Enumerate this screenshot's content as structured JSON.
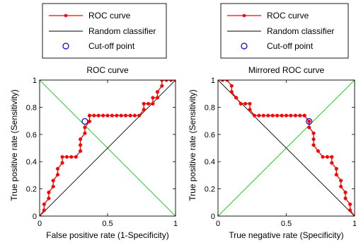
{
  "chart_data": [
    {
      "type": "line",
      "title": "ROC curve",
      "xlabel": "False positive rate (1-Specificity)",
      "ylabel": "True positive rate (Sensitivity)",
      "xlim": [
        0,
        1
      ],
      "ylim": [
        0,
        1
      ],
      "xticks": [
        0,
        0.5,
        1
      ],
      "yticks": [
        0,
        0.2,
        0.4,
        0.6,
        0.8,
        1
      ],
      "xtick_labels": [
        "0",
        "0.5",
        "1"
      ],
      "ytick_labels": [
        "0",
        "0.2",
        "0.4",
        "0.6",
        "0.8",
        "1"
      ],
      "grid": false,
      "legend": {
        "placement": "above-plot",
        "entries": [
          "ROC curve",
          "Random classifier",
          "Cut-off point"
        ]
      },
      "series": [
        {
          "name": "ROC curve",
          "color": "#ff0000",
          "style": "line-with-dots",
          "x": [
            0,
            0.033,
            0.033,
            0.067,
            0.067,
            0.1,
            0.1,
            0.133,
            0.133,
            0.167,
            0.167,
            0.2,
            0.233,
            0.267,
            0.3,
            0.3,
            0.3,
            0.333,
            0.333,
            0.367,
            0.367,
            0.367,
            0.4,
            0.433,
            0.467,
            0.5,
            0.533,
            0.567,
            0.6,
            0.633,
            0.667,
            0.667,
            0.7,
            0.733,
            0.767,
            0.767,
            0.8,
            0.833,
            0.833,
            0.867,
            0.867,
            0.9,
            0.9,
            0.933,
            0.967,
            1,
            1
          ],
          "y": [
            0,
            0.043,
            0.087,
            0.13,
            0.174,
            0.217,
            0.261,
            0.304,
            0.348,
            0.391,
            0.435,
            0.435,
            0.435,
            0.435,
            0.478,
            0.522,
            0.565,
            0.609,
            0.652,
            0.696,
            0.739,
            0.739,
            0.739,
            0.739,
            0.739,
            0.739,
            0.739,
            0.739,
            0.739,
            0.739,
            0.739,
            0.739,
            0.739,
            0.739,
            0.783,
            0.826,
            0.826,
            0.826,
            0.87,
            0.87,
            0.913,
            0.957,
            1,
            1,
            1,
            1,
            1
          ]
        },
        {
          "name": "Random classifier",
          "color": "#000000",
          "style": "line",
          "x": [
            0,
            1
          ],
          "y": [
            0,
            1
          ]
        },
        {
          "name": "",
          "color": "#00cc00",
          "style": "line",
          "x": [
            0,
            1
          ],
          "y": [
            1,
            0
          ]
        }
      ],
      "cutoff_point": {
        "name": "Cut-off point",
        "x": 0.333,
        "y": 0.696,
        "color": "#0000cc"
      }
    },
    {
      "type": "line",
      "title": "Mirrored ROC curve",
      "xlabel": "True negative rate (Specificity)",
      "ylabel": "True positive rate (Sensitivity)",
      "xlim": [
        0,
        1
      ],
      "ylim": [
        0,
        1
      ],
      "xticks": [
        0,
        0.5,
        1
      ],
      "yticks": [
        0,
        0.2,
        0.4,
        0.6,
        0.8,
        1
      ],
      "xtick_labels": [
        "0",
        "0.5",
        "1"
      ],
      "ytick_labels": [
        "0",
        "0.2",
        "0.4",
        "0.6",
        "0.8",
        "1"
      ],
      "grid": false,
      "legend": {
        "placement": "above-plot",
        "entries": [
          "ROC curve",
          "Random classifier",
          "Cut-off point"
        ]
      },
      "series": [
        {
          "name": "ROC curve",
          "color": "#ff0000",
          "style": "line-with-dots",
          "x": [
            0.033,
            0.067,
            0.1,
            0.1,
            0.133,
            0.133,
            0.167,
            0.2,
            0.233,
            0.233,
            0.267,
            0.3,
            0.333,
            0.367,
            0.4,
            0.433,
            0.467,
            0.5,
            0.533,
            0.567,
            0.6,
            0.633,
            0.633,
            0.633,
            0.667,
            0.667,
            0.7,
            0.7,
            0.7,
            0.733,
            0.767,
            0.8,
            0.833,
            0.833,
            0.867,
            0.867,
            0.9,
            0.9,
            0.933,
            0.933,
            0.967,
            0.967,
            1
          ],
          "y": [
            1,
            1,
            0.957,
            0.913,
            0.87,
            0.87,
            0.826,
            0.826,
            0.826,
            0.783,
            0.739,
            0.739,
            0.739,
            0.739,
            0.739,
            0.739,
            0.739,
            0.739,
            0.739,
            0.739,
            0.739,
            0.739,
            0.739,
            0.739,
            0.696,
            0.652,
            0.609,
            0.565,
            0.522,
            0.478,
            0.435,
            0.435,
            0.435,
            0.391,
            0.348,
            0.304,
            0.261,
            0.217,
            0.174,
            0.13,
            0.087,
            0.043,
            0
          ]
        },
        {
          "name": "Random classifier",
          "color": "#000000",
          "style": "line",
          "x": [
            0,
            1
          ],
          "y": [
            1,
            0
          ]
        },
        {
          "name": "",
          "color": "#00cc00",
          "style": "line",
          "x": [
            0,
            1
          ],
          "y": [
            0,
            1
          ]
        }
      ],
      "cutoff_point": {
        "name": "Cut-off point",
        "x": 0.667,
        "y": 0.696,
        "color": "#0000cc"
      }
    }
  ]
}
